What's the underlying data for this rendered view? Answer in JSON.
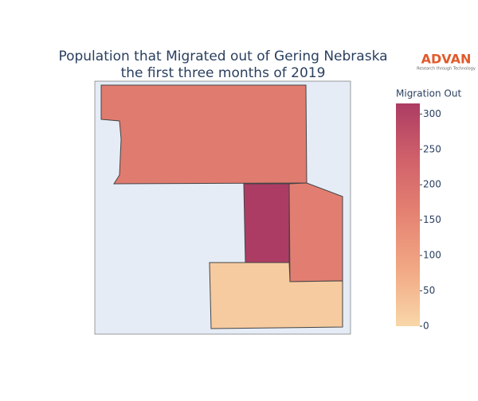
{
  "chart_data": {
    "type": "choropleth",
    "title": [
      "Population that Migrated out of Gering Nebraska",
      "the first three months of 2019"
    ],
    "logo": {
      "name": "ADVAN",
      "tagline": "Research through Technology"
    },
    "values": [
      175,
      315,
      170,
      20
    ],
    "colorscale": [
      "#f8d7a9",
      "#f2a984",
      "#e58372",
      "#d0616a",
      "#ac3c63"
    ],
    "colorbar": {
      "title": "Migration Out",
      "lim": [
        0,
        315
      ],
      "ticks": [
        0,
        50,
        100,
        150,
        200,
        250,
        300
      ]
    },
    "map_background": "#e5ecf6"
  }
}
